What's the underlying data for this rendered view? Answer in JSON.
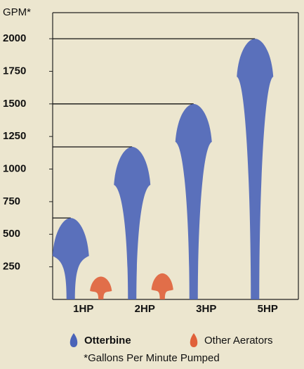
{
  "chart_data": {
    "type": "fountain",
    "y_label": "GPM*",
    "categories": [
      "1HP",
      "2HP",
      "3HP",
      "5HP"
    ],
    "series": [
      {
        "name": "Otterbine",
        "color": "#4a63b8",
        "values": [
          625,
          1170,
          1500,
          2000
        ]
      },
      {
        "name": "Other Aerators",
        "color": "#e0603a",
        "values": [
          175,
          200,
          null,
          null
        ]
      }
    ],
    "ylim": [
      0,
      2200
    ],
    "yticks": [
      250,
      500,
      750,
      1000,
      1250,
      1500,
      1750,
      2000
    ],
    "footnote": "*Gallons Per Minute Pumped"
  }
}
